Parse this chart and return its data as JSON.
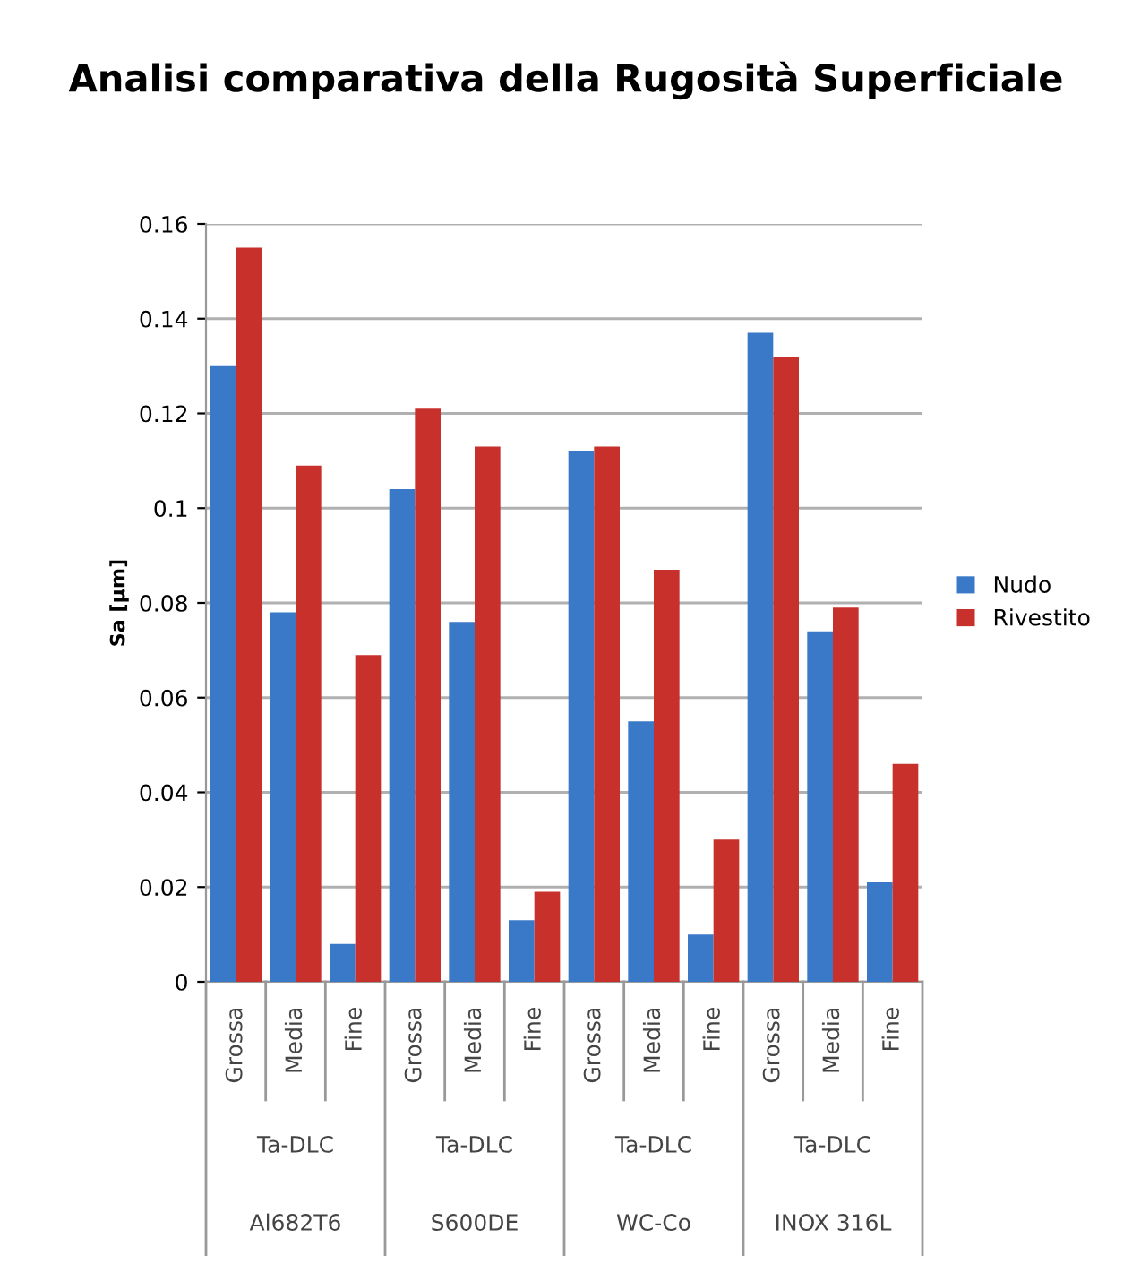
{
  "chart_data": {
    "type": "bar",
    "title": "Analisi comparativa della Rugosità Superficiale",
    "ylabel": "Sa [µm]",
    "categories": [
      "Grossa",
      "Media",
      "Fine",
      "Grossa",
      "Media",
      "Fine",
      "Grossa",
      "Media",
      "Fine",
      "Grossa",
      "Media",
      "Fine"
    ],
    "series": [
      {
        "name": "Nudo",
        "color": "#3a78c8",
        "values": [
          0.13,
          0.078,
          0.008,
          0.104,
          0.076,
          0.013,
          0.112,
          0.055,
          0.01,
          0.137,
          0.074,
          0.021
        ]
      },
      {
        "name": "Rivestito",
        "color": "#c8302c",
        "values": [
          0.155,
          0.109,
          0.069,
          0.121,
          0.113,
          0.019,
          0.113,
          0.087,
          0.03,
          0.132,
          0.079,
          0.046
        ]
      }
    ],
    "annotations": [
      "Ta-DLC",
      "Al682T6",
      "Ta-DLC",
      "S600DE",
      "Ta-DLC",
      "WC-Co",
      "Ta-DLC",
      "INOX 316L"
    ],
    "ylim": [
      0,
      0.16
    ],
    "yticks": [
      0,
      {
        "value": 0.02,
        "label": "0.02"
      },
      {
        "value": 0.04,
        "label": "0.04"
      },
      {
        "value": 0.06,
        "label": "0.06"
      },
      {
        "value": 0.08,
        "label": "0.08"
      },
      {
        "value": 0.1,
        "label": "0.1"
      },
      {
        "value": 0.12,
        "label": "0.12"
      },
      {
        "value": 0.14,
        "label": "0.14"
      },
      {
        "value": 0.16,
        "label": "0.16"
      }
    ],
    "grid": "y",
    "legend": "right"
  }
}
